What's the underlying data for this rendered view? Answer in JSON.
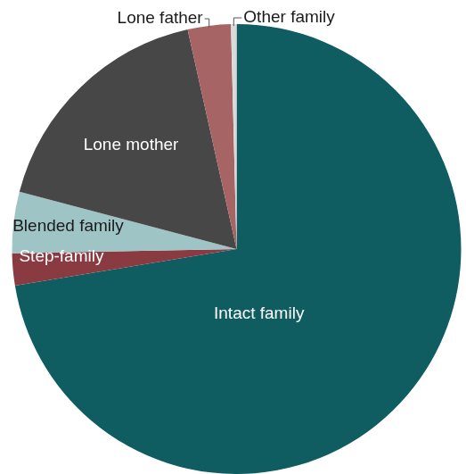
{
  "chart_data": {
    "type": "pie",
    "categories": [
      "Intact family",
      "Step-family",
      "Blended family",
      "Lone mother",
      "Lone father",
      "Other family"
    ],
    "values": [
      72.4,
      2.3,
      4.4,
      17.4,
      3.1,
      0.4
    ],
    "colors": [
      "#0f5d61",
      "#8a3a41",
      "#9fc4c6",
      "#474747",
      "#a66465",
      "#dadada"
    ]
  }
}
